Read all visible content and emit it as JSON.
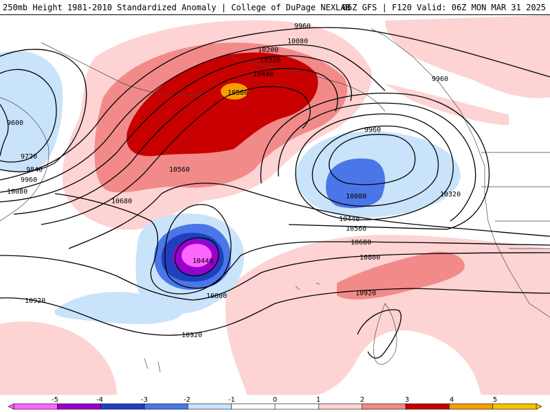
{
  "header": {
    "title_left": "250mb Height 1981-2010 Standardized Anomaly | College of DuPage NEXLAB",
    "title_right": "06Z GFS | F120 Valid: 06Z MON MAR 31 2025"
  },
  "colors": {
    "anomaly_-5": "#ff66ff",
    "anomaly_-4": "#9900cc",
    "anomaly_-3": "#1f3fbf",
    "anomaly_-2": "#4a76e8",
    "anomaly_-1": "#c9e3fa",
    "anomaly_1": "#fdd3d3",
    "anomaly_2": "#f28a8a",
    "anomaly_3": "#c80000",
    "anomaly_4": "#f5a000",
    "contour": "#000000",
    "coastline": "#4a4a4a"
  },
  "contours": [
    {
      "value": "9600"
    },
    {
      "value": "9720"
    },
    {
      "value": "9840"
    },
    {
      "value": "9960"
    },
    {
      "value": "10080"
    },
    {
      "value": "10200"
    },
    {
      "value": "10320"
    },
    {
      "value": "10440"
    },
    {
      "value": "10560"
    },
    {
      "value": "10680"
    },
    {
      "value": "10800"
    },
    {
      "value": "10920"
    }
  ],
  "contour_labels": [
    "9960",
    "10080",
    "10200",
    "10320",
    "10440",
    "10560",
    "9960",
    "9600",
    "9720",
    "9840",
    "9960",
    "10080",
    "9960",
    "10080",
    "10560",
    "10680",
    "10320",
    "10440",
    "10560",
    "10680",
    "10440",
    "10800",
    "10800",
    "10920",
    "10920",
    "10920"
  ],
  "colorbar": {
    "ticks": [
      "-5",
      "-4",
      "-3",
      "-2",
      "-1",
      "0",
      "1",
      "2",
      "3",
      "4",
      "5"
    ],
    "segment_colors": [
      "#ff66ff",
      "#9900cc",
      "#1f3fbf",
      "#4a76e8",
      "#c9e3fa",
      "#ffffff",
      "#ffffff",
      "#fdd3d3",
      "#f28a8a",
      "#c80000",
      "#f5a000",
      "#f5c400"
    ]
  }
}
